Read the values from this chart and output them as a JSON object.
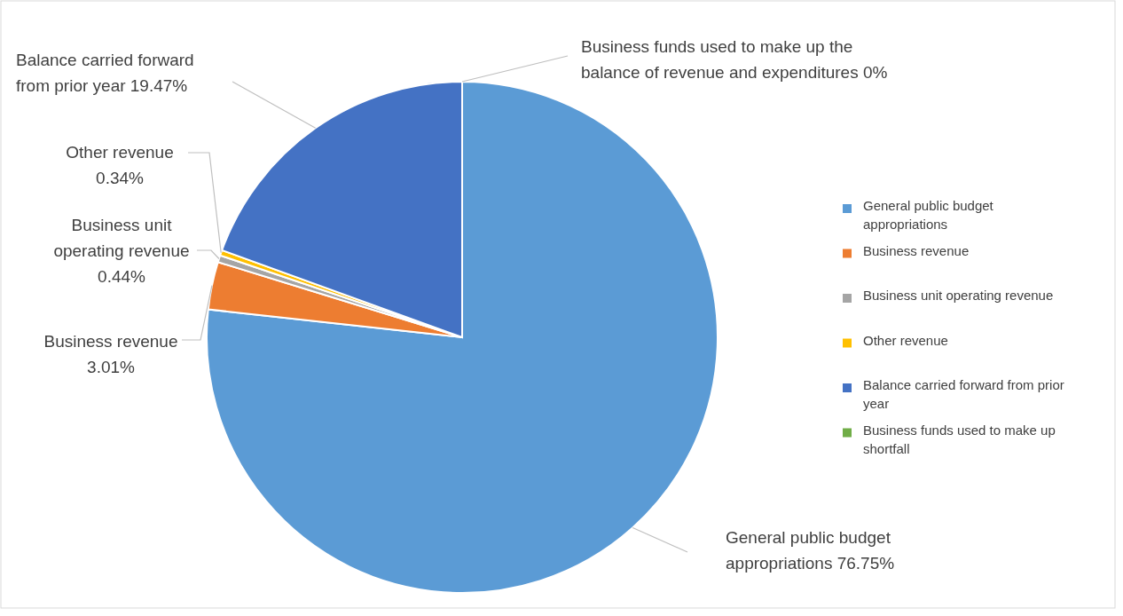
{
  "chart_data": {
    "type": "pie",
    "categories": [
      "General public budget appropriations",
      "Business revenue",
      "Business unit operating revenue",
      "Other revenue",
      "Balance carried forward from prior year",
      "Business funds used to make up shortfall"
    ],
    "values": [
      76.75,
      3.01,
      0.44,
      0.34,
      19.47,
      0
    ],
    "colors": [
      "#5b9bd5",
      "#ed7d31",
      "#a5a5a5",
      "#ffc000",
      "#4472c4",
      "#70ad47"
    ],
    "value_labels": [
      "General public budget appropriations 76.75%",
      "Business revenue 3.01%",
      "Business unit operating revenue 0.44%",
      "Other revenue 0.34%",
      "Balance carried forward from prior year 19.47%",
      "Business funds used to make up the balance of revenue and expenditures 0%"
    ],
    "legend": "right"
  }
}
